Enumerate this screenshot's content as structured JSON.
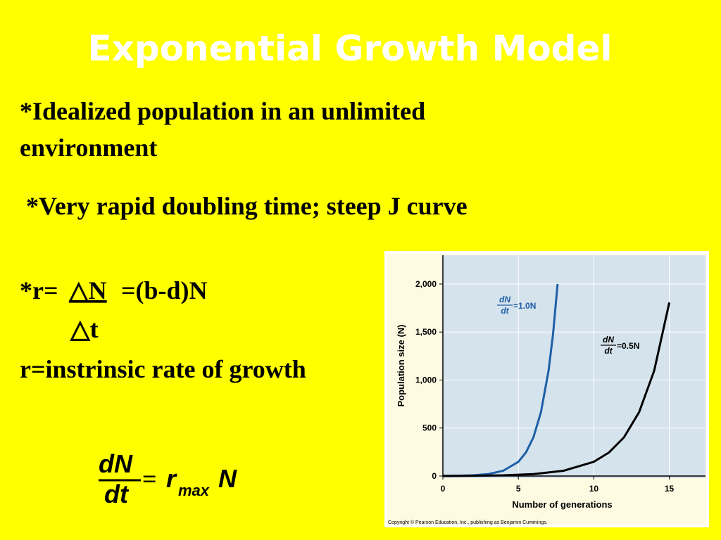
{
  "slide": {
    "title": "Exponential Growth Model",
    "bullet1_line1": "*Idealized population in an unlimited",
    "bullet1_line2": "environment",
    "bullet2": "*Very rapid doubling time; steep J curve",
    "r_formula": {
      "prefix": "*r=",
      "numerator": "△N",
      "suffix": "=(b-d)N",
      "denominator": "△t"
    },
    "r_definition": "r=instrinsic rate of growth",
    "equation": {
      "numerator": "dN",
      "denominator": "dt",
      "equals": "=",
      "r": "r",
      "subscript": "max",
      "n": "N"
    }
  },
  "chart_data": {
    "type": "line",
    "x_label": "Number of generations",
    "y_label": "Population size (N)",
    "xlim": [
      0,
      17.4
    ],
    "ylim": [
      0,
      2300
    ],
    "xticks": [
      0,
      5,
      10,
      15
    ],
    "yticks": [
      0,
      500,
      {
        "value": 1000,
        "label": "1,000"
      },
      {
        "value": 1500,
        "label": "1,500"
      },
      {
        "value": 2000,
        "label": "2,000"
      }
    ],
    "grid": true,
    "series": [
      {
        "color": "#1d5fa6",
        "x": [
          0,
          1,
          2,
          3,
          4,
          5,
          5.5,
          6,
          6.5,
          7,
          7.3,
          7.6
        ],
        "values": [
          1,
          3,
          7,
          20,
          55,
          148,
          245,
          403,
          665,
          1097,
          1480,
          2000
        ]
      },
      {
        "color": "#000000",
        "x": [
          0,
          2,
          4,
          6,
          8,
          10,
          11,
          12,
          13,
          14,
          15
        ],
        "values": [
          1,
          3,
          7,
          20,
          55,
          148,
          245,
          403,
          665,
          1097,
          1808
        ]
      }
    ],
    "annotations": [
      {
        "numerator": "dN",
        "denominator": "dt",
        "rhs": "=1.0N"
      },
      {
        "numerator": "dN",
        "denominator": "dt",
        "rhs": "=0.5N"
      }
    ],
    "copyright": "Copyright © Pearson Education, Inc., publishing as Benjamin Cummings."
  }
}
